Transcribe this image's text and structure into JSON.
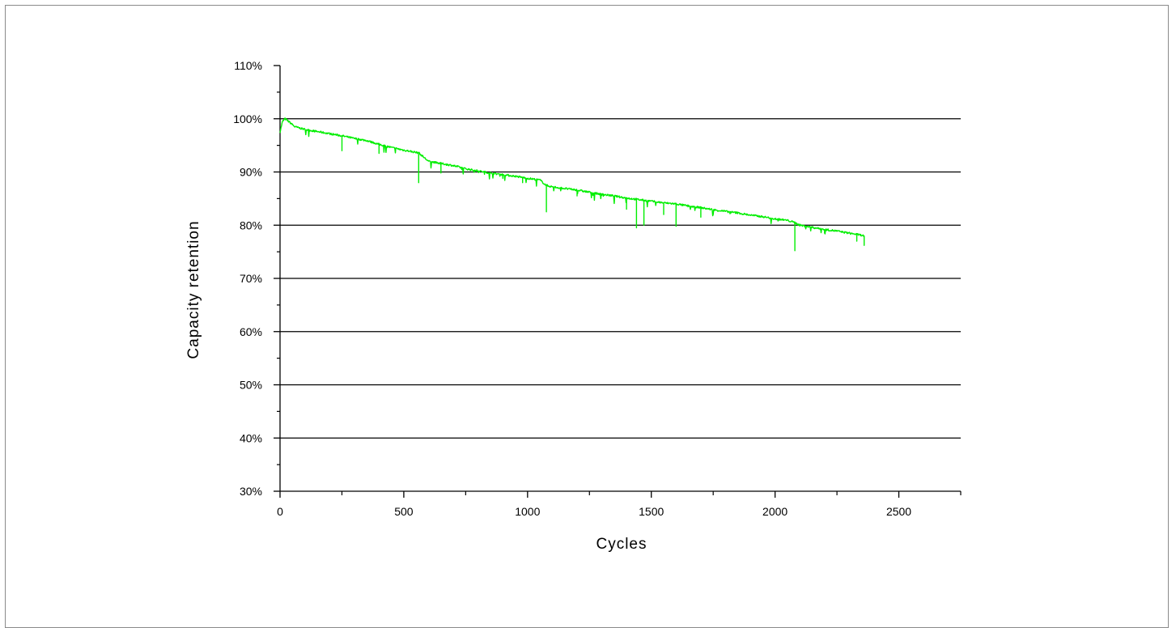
{
  "chart_data": {
    "type": "line",
    "title": "",
    "xlabel": "Cycles",
    "ylabel": "Capacity retention",
    "xlim": [
      0,
      2750
    ],
    "ylim": [
      30,
      110
    ],
    "x_ticks": [
      0,
      500,
      1000,
      1500,
      2000,
      2500
    ],
    "x_tick_labels": [
      "0",
      "500",
      "1000",
      "1500",
      "2000",
      "2500"
    ],
    "y_ticks": [
      30,
      40,
      50,
      60,
      70,
      80,
      90,
      100,
      110
    ],
    "y_tick_labels": [
      "30%",
      "40%",
      "50%",
      "60%",
      "70%",
      "80%",
      "90%",
      "100%",
      "110%"
    ],
    "gridlines_y": [
      40,
      50,
      60,
      70,
      80,
      90,
      100
    ],
    "grid": "horizontal",
    "series": [
      {
        "color": "#00ee00",
        "x": [
          0,
          10,
          20,
          40,
          60,
          100,
          150,
          200,
          250,
          300,
          350,
          400,
          450,
          500,
          560,
          600,
          650,
          700,
          750,
          800,
          850,
          900,
          950,
          1000,
          1050,
          1075,
          1100,
          1150,
          1200,
          1250,
          1300,
          1350,
          1400,
          1450,
          1500,
          1550,
          1600,
          1650,
          1700,
          1750,
          1800,
          1850,
          1900,
          1950,
          2000,
          2050,
          2080,
          2100,
          2150,
          2200,
          2250,
          2300,
          2340,
          2360
        ],
        "y": [
          97.5,
          99.5,
          100.0,
          99.3,
          98.5,
          98.0,
          97.6,
          97.2,
          96.8,
          96.3,
          95.9,
          95.2,
          94.6,
          94.1,
          93.6,
          92.0,
          91.6,
          91.2,
          90.6,
          90.2,
          89.8,
          89.5,
          89.2,
          88.8,
          88.5,
          87.5,
          87.2,
          86.9,
          86.6,
          86.2,
          85.8,
          85.5,
          85.1,
          84.8,
          84.5,
          84.2,
          84.0,
          83.6,
          83.3,
          82.9,
          82.6,
          82.3,
          81.9,
          81.6,
          81.2,
          80.9,
          80.5,
          80.0,
          79.6,
          79.2,
          78.9,
          78.5,
          78.2,
          78.0
        ],
        "dips": [
          {
            "x": 250,
            "y": 94.0
          },
          {
            "x": 400,
            "y": 93.5
          },
          {
            "x": 560,
            "y": 88.0
          },
          {
            "x": 650,
            "y": 89.8
          },
          {
            "x": 900,
            "y": 88.8
          },
          {
            "x": 980,
            "y": 88.0
          },
          {
            "x": 1075,
            "y": 82.5
          },
          {
            "x": 1200,
            "y": 85.5
          },
          {
            "x": 1350,
            "y": 84.2
          },
          {
            "x": 1400,
            "y": 83.0
          },
          {
            "x": 1440,
            "y": 79.5
          },
          {
            "x": 1470,
            "y": 80.0
          },
          {
            "x": 1550,
            "y": 82.0
          },
          {
            "x": 1600,
            "y": 79.8
          },
          {
            "x": 1700,
            "y": 81.5
          },
          {
            "x": 2080,
            "y": 75.2
          },
          {
            "x": 2200,
            "y": 78.5
          },
          {
            "x": 2330,
            "y": 77.0
          },
          {
            "x": 2360,
            "y": 76.2
          }
        ]
      }
    ]
  }
}
